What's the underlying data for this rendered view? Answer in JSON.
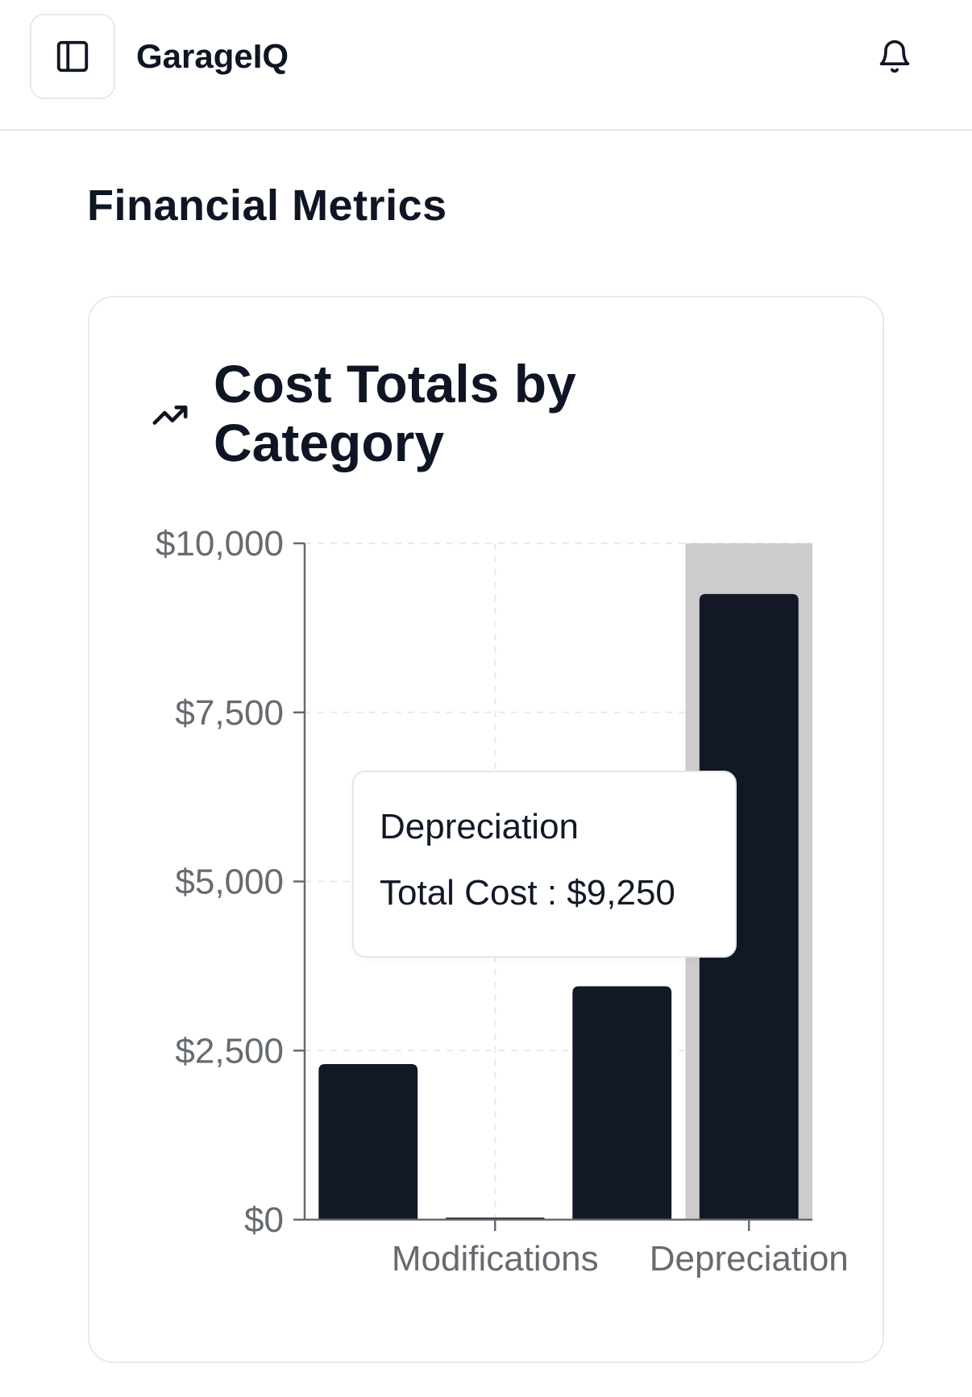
{
  "app": {
    "title": "GarageIQ",
    "sidebar_toggle_icon": "panel-left-icon",
    "notifications_icon": "bell-icon"
  },
  "page": {
    "section_title": "Financial Metrics"
  },
  "card": {
    "title": "Cost Totals by Category",
    "icon": "trending-up-icon"
  },
  "tooltip": {
    "category": "Depreciation",
    "label": "Total Cost",
    "separator": " : ",
    "value": "$9,250"
  },
  "chart_data": {
    "type": "bar",
    "categories": [
      "",
      "Modifications",
      "",
      "Depreciation"
    ],
    "values": [
      2300,
      30,
      3450,
      9250
    ],
    "y_ticks": [
      "$0",
      "$2,500",
      "$5,000",
      "$7,500",
      "$10,000"
    ],
    "y_tick_values": [
      0,
      2500,
      5000,
      7500,
      10000
    ],
    "x_tick_labels": [
      "Modifications",
      "Depreciation"
    ],
    "ylim": [
      0,
      10000
    ],
    "grid": true,
    "highlighted_index": 3,
    "bar_color": "#121826",
    "highlight_color": "#cccccc",
    "title": "",
    "xlabel": "",
    "ylabel": ""
  },
  "colors": {
    "text": "#0f1524",
    "bar": "#121826",
    "axis": "#666b70",
    "border": "#e6eaee"
  }
}
